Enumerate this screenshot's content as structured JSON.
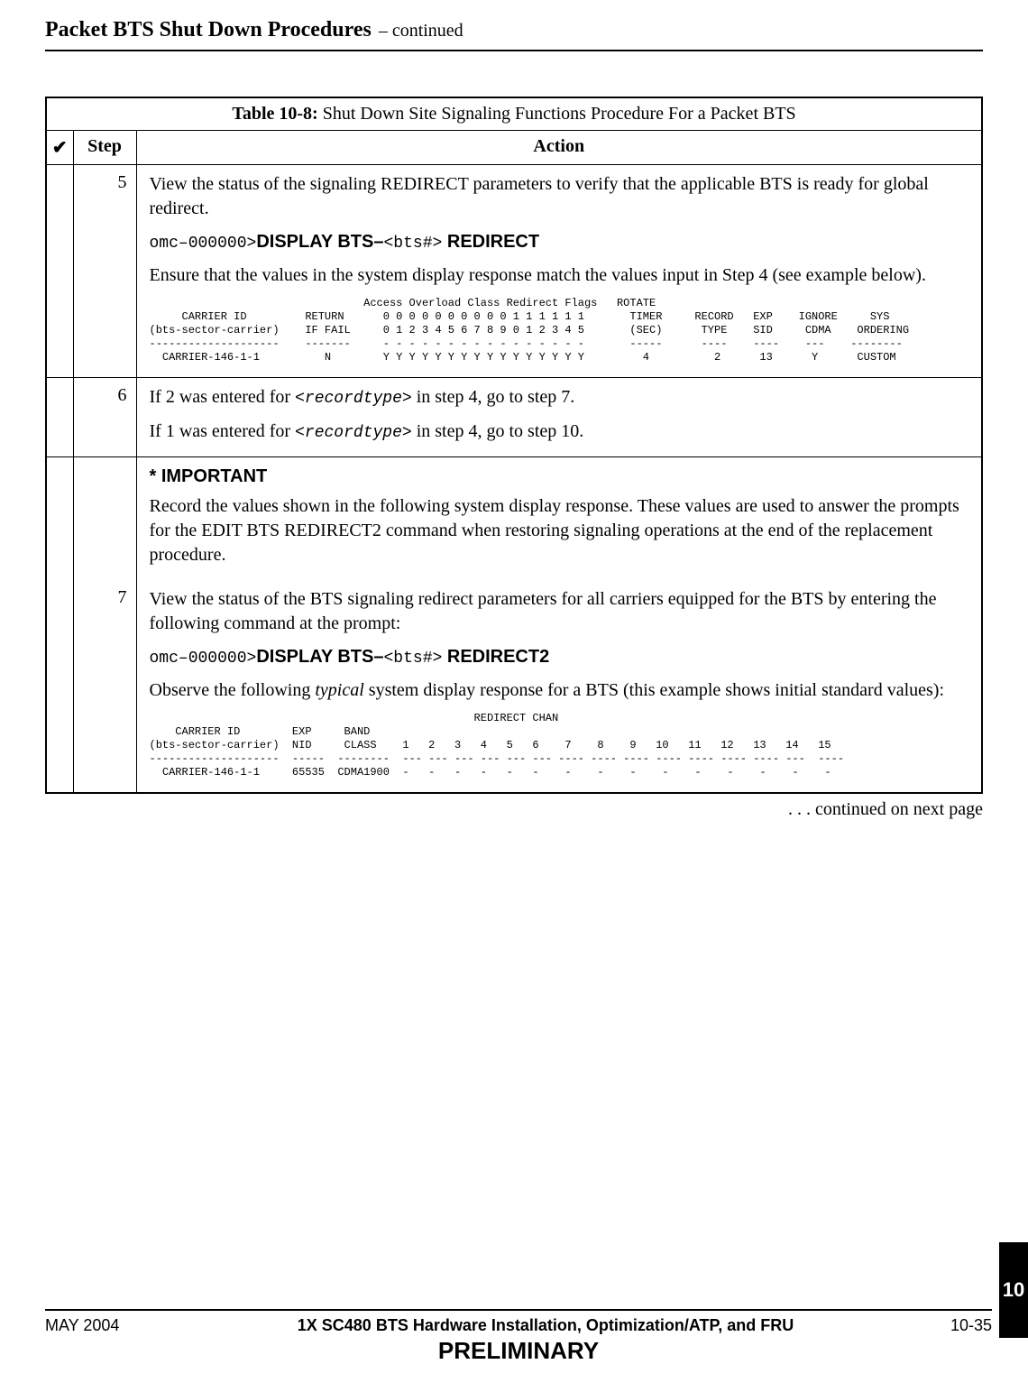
{
  "header": {
    "title": "Packet BTS Shut Down Procedures",
    "continued": "– continued"
  },
  "table": {
    "caption_bold": "Table 10-8:",
    "caption_rest": " Shut Down Site Signaling Functions Procedure For a Packet BTS",
    "head_check": "✔",
    "head_step": "Step",
    "head_action": "Action"
  },
  "row5": {
    "step": "5",
    "p1": "View the status of the signaling REDIRECT parameters to verify that the applicable BTS is ready for global redirect.",
    "cmd_prefix": "omc–000000>",
    "cmd_bold1": "DISPLAY BTS–",
    "cmd_arg": "<bts#>",
    "cmd_bold2": " REDIRECT",
    "p2": "Ensure that the values in the system display response match the values input in Step 4 (see example below).",
    "pre": "                                 Access Overload Class Redirect Flags   ROTATE\n     CARRIER ID         RETURN      0 0 0 0 0 0 0 0 0 0 1 1 1 1 1 1       TIMER     RECORD   EXP    IGNORE     SYS\n(bts-sector-carrier)    IF FAIL     0 1 2 3 4 5 6 7 8 9 0 1 2 3 4 5       (SEC)      TYPE    SID     CDMA    ORDERING\n--------------------    -------     - - - - - - - - - - - - - - - -       -----      ----    ----    ---    --------\n  CARRIER-146-1-1          N        Y Y Y Y Y Y Y Y Y Y Y Y Y Y Y Y         4          2      13      Y      CUSTOM"
  },
  "row6": {
    "step": "6",
    "p1a": "If 2 was entered for ",
    "p1m": "<recordtype>",
    "p1b": " in step 4, go to step 7.",
    "p2a": "If 1 was entered for ",
    "p2m": "<recordtype>",
    "p2b": " in step 4, go to step 10."
  },
  "row7": {
    "important": "* IMPORTANT",
    "imp_text": "Record the values shown in the following system display response. These values are used to answer the prompts for the EDIT BTS REDIRECT2 command when restoring signaling operations at the end of the replacement procedure.",
    "step": "7",
    "p1": "View the status of the BTS signaling redirect parameters for all carriers equipped for the BTS by entering the following command at the prompt:",
    "cmd_prefix": "omc–000000>",
    "cmd_bold1": "DISPLAY BTS–",
    "cmd_arg": "<bts#>",
    "cmd_bold2": " REDIRECT2",
    "p2a": "Observe the following ",
    "p2i": "typical",
    "p2b": " system display response for a BTS (this example shows initial standard values):",
    "pre": "                                                  REDIRECT CHAN\n    CARRIER ID        EXP     BAND\n(bts-sector-carrier)  NID     CLASS    1   2   3   4   5   6    7    8    9   10   11   12   13   14   15\n--------------------  -----  --------  --- --- --- --- --- --- ---- ---- ---- ---- ---- ---- ---- ---  ----\n  CARRIER-146-1-1     65535  CDMA1900  -   -   -   -   -   -    -    -    -    -    -    -    -    -    -"
  },
  "continued": ". . . continued on next page",
  "footer": {
    "left": "MAY 2004",
    "mid": "1X SC480 BTS Hardware Installation, Optimization/ATP, and FRU",
    "right": "10-35",
    "prelim": "PRELIMINARY"
  },
  "sidetab": "10"
}
